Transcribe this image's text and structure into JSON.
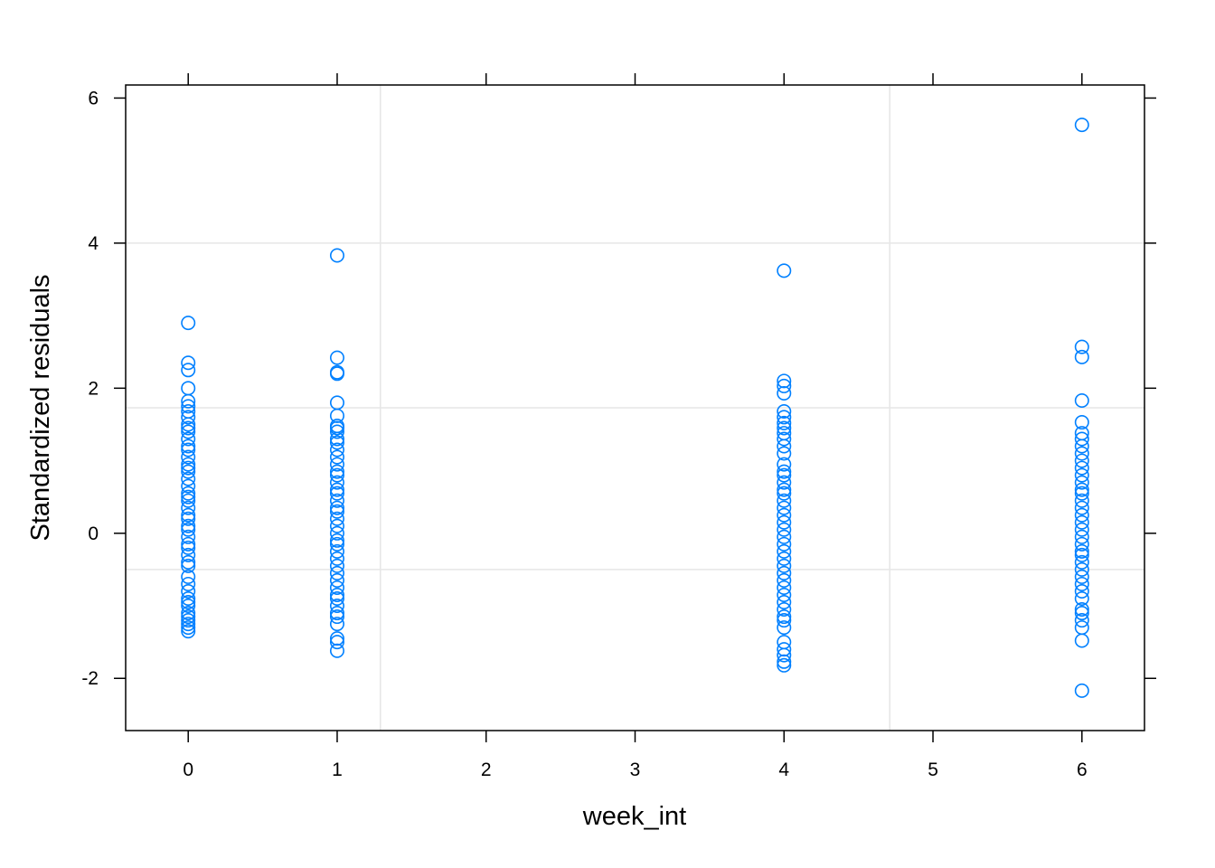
{
  "chart_data": {
    "type": "scatter",
    "title": "",
    "xlabel": "week_int",
    "ylabel": "Standardized residuals",
    "xlim": [
      -0.42,
      6.42
    ],
    "ylim": [
      -2.72,
      6.18
    ],
    "x_ticks": [
      0,
      1,
      2,
      3,
      4,
      5,
      6
    ],
    "y_ticks": [
      -2,
      0,
      2,
      4,
      6
    ],
    "x_tick_labels": [
      "0",
      "1",
      "2",
      "3",
      "4",
      "5",
      "6"
    ],
    "y_tick_labels": [
      "-2",
      "0",
      "2",
      "4",
      "6"
    ],
    "grid": true,
    "grid_x": [
      1.29,
      4.71
    ],
    "grid_y": [
      -0.5,
      1.73,
      4.0
    ],
    "colors": {
      "points": "#0080ff",
      "grid": "#e6e6e6",
      "axis": "#000000"
    },
    "series": [
      {
        "points": [
          {
            "x": 0,
            "y": 2.9
          },
          {
            "x": 0,
            "y": 2.35
          },
          {
            "x": 0,
            "y": 2.25
          },
          {
            "x": 0,
            "y": 2.0
          },
          {
            "x": 0,
            "y": 1.82
          },
          {
            "x": 0,
            "y": 1.75
          },
          {
            "x": 0,
            "y": 1.68
          },
          {
            "x": 0,
            "y": 1.6
          },
          {
            "x": 0,
            "y": 1.5
          },
          {
            "x": 0,
            "y": 1.45
          },
          {
            "x": 0,
            "y": 1.4
          },
          {
            "x": 0,
            "y": 1.3
          },
          {
            "x": 0,
            "y": 1.2
          },
          {
            "x": 0,
            "y": 1.15
          },
          {
            "x": 0,
            "y": 1.05
          },
          {
            "x": 0,
            "y": 0.95
          },
          {
            "x": 0,
            "y": 0.9
          },
          {
            "x": 0,
            "y": 0.85
          },
          {
            "x": 0,
            "y": 0.75
          },
          {
            "x": 0,
            "y": 0.65
          },
          {
            "x": 0,
            "y": 0.55
          },
          {
            "x": 0,
            "y": 0.5
          },
          {
            "x": 0,
            "y": 0.45
          },
          {
            "x": 0,
            "y": 0.35
          },
          {
            "x": 0,
            "y": 0.25
          },
          {
            "x": 0,
            "y": 0.2
          },
          {
            "x": 0,
            "y": 0.1
          },
          {
            "x": 0,
            "y": 0.05
          },
          {
            "x": 0,
            "y": -0.05
          },
          {
            "x": 0,
            "y": -0.15
          },
          {
            "x": 0,
            "y": -0.2
          },
          {
            "x": 0,
            "y": -0.3
          },
          {
            "x": 0,
            "y": -0.4
          },
          {
            "x": 0,
            "y": -0.45
          },
          {
            "x": 0,
            "y": -0.6
          },
          {
            "x": 0,
            "y": -0.7
          },
          {
            "x": 0,
            "y": -0.8
          },
          {
            "x": 0,
            "y": -0.9
          },
          {
            "x": 0,
            "y": -0.95
          },
          {
            "x": 0,
            "y": -1.0
          },
          {
            "x": 0,
            "y": -1.1
          },
          {
            "x": 0,
            "y": -1.15
          },
          {
            "x": 0,
            "y": -1.2
          },
          {
            "x": 0,
            "y": -1.25
          },
          {
            "x": 0,
            "y": -1.3
          },
          {
            "x": 0,
            "y": -1.35
          },
          {
            "x": 1,
            "y": 3.83
          },
          {
            "x": 1,
            "y": 2.42
          },
          {
            "x": 1,
            "y": 2.22
          },
          {
            "x": 1,
            "y": 2.2
          },
          {
            "x": 1,
            "y": 1.8
          },
          {
            "x": 1,
            "y": 1.62
          },
          {
            "x": 1,
            "y": 1.48
          },
          {
            "x": 1,
            "y": 1.45
          },
          {
            "x": 1,
            "y": 1.4
          },
          {
            "x": 1,
            "y": 1.3
          },
          {
            "x": 1,
            "y": 1.25
          },
          {
            "x": 1,
            "y": 1.15
          },
          {
            "x": 1,
            "y": 1.05
          },
          {
            "x": 1,
            "y": 0.95
          },
          {
            "x": 1,
            "y": 0.85
          },
          {
            "x": 1,
            "y": 0.8
          },
          {
            "x": 1,
            "y": 0.7
          },
          {
            "x": 1,
            "y": 0.6
          },
          {
            "x": 1,
            "y": 0.55
          },
          {
            "x": 1,
            "y": 0.45
          },
          {
            "x": 1,
            "y": 0.35
          },
          {
            "x": 1,
            "y": 0.3
          },
          {
            "x": 1,
            "y": 0.2
          },
          {
            "x": 1,
            "y": 0.1
          },
          {
            "x": 1,
            "y": 0.0
          },
          {
            "x": 1,
            "y": -0.1
          },
          {
            "x": 1,
            "y": -0.15
          },
          {
            "x": 1,
            "y": -0.25
          },
          {
            "x": 1,
            "y": -0.35
          },
          {
            "x": 1,
            "y": -0.45
          },
          {
            "x": 1,
            "y": -0.55
          },
          {
            "x": 1,
            "y": -0.65
          },
          {
            "x": 1,
            "y": -0.75
          },
          {
            "x": 1,
            "y": -0.85
          },
          {
            "x": 1,
            "y": -0.9
          },
          {
            "x": 1,
            "y": -1.0
          },
          {
            "x": 1,
            "y": -1.1
          },
          {
            "x": 1,
            "y": -1.15
          },
          {
            "x": 1,
            "y": -1.25
          },
          {
            "x": 1,
            "y": -1.45
          },
          {
            "x": 1,
            "y": -1.5
          },
          {
            "x": 1,
            "y": -1.62
          },
          {
            "x": 4,
            "y": 3.62
          },
          {
            "x": 4,
            "y": 2.1
          },
          {
            "x": 4,
            "y": 2.03
          },
          {
            "x": 4,
            "y": 1.93
          },
          {
            "x": 4,
            "y": 1.68
          },
          {
            "x": 4,
            "y": 1.6
          },
          {
            "x": 4,
            "y": 1.52
          },
          {
            "x": 4,
            "y": 1.45
          },
          {
            "x": 4,
            "y": 1.38
          },
          {
            "x": 4,
            "y": 1.3
          },
          {
            "x": 4,
            "y": 1.2
          },
          {
            "x": 4,
            "y": 1.1
          },
          {
            "x": 4,
            "y": 0.95
          },
          {
            "x": 4,
            "y": 0.85
          },
          {
            "x": 4,
            "y": 0.8
          },
          {
            "x": 4,
            "y": 0.7
          },
          {
            "x": 4,
            "y": 0.6
          },
          {
            "x": 4,
            "y": 0.55
          },
          {
            "x": 4,
            "y": 0.45
          },
          {
            "x": 4,
            "y": 0.35
          },
          {
            "x": 4,
            "y": 0.25
          },
          {
            "x": 4,
            "y": 0.15
          },
          {
            "x": 4,
            "y": 0.05
          },
          {
            "x": 4,
            "y": -0.05
          },
          {
            "x": 4,
            "y": -0.15
          },
          {
            "x": 4,
            "y": -0.25
          },
          {
            "x": 4,
            "y": -0.35
          },
          {
            "x": 4,
            "y": -0.45
          },
          {
            "x": 4,
            "y": -0.55
          },
          {
            "x": 4,
            "y": -0.65
          },
          {
            "x": 4,
            "y": -0.75
          },
          {
            "x": 4,
            "y": -0.85
          },
          {
            "x": 4,
            "y": -0.95
          },
          {
            "x": 4,
            "y": -1.05
          },
          {
            "x": 4,
            "y": -1.15
          },
          {
            "x": 4,
            "y": -1.2
          },
          {
            "x": 4,
            "y": -1.3
          },
          {
            "x": 4,
            "y": -1.5
          },
          {
            "x": 4,
            "y": -1.6
          },
          {
            "x": 4,
            "y": -1.68
          },
          {
            "x": 4,
            "y": -1.77
          },
          {
            "x": 4,
            "y": -1.82
          },
          {
            "x": 6,
            "y": 5.63
          },
          {
            "x": 6,
            "y": 2.57
          },
          {
            "x": 6,
            "y": 2.43
          },
          {
            "x": 6,
            "y": 1.83
          },
          {
            "x": 6,
            "y": 1.53
          },
          {
            "x": 6,
            "y": 1.38
          },
          {
            "x": 6,
            "y": 1.3
          },
          {
            "x": 6,
            "y": 1.2
          },
          {
            "x": 6,
            "y": 1.1
          },
          {
            "x": 6,
            "y": 1.0
          },
          {
            "x": 6,
            "y": 0.9
          },
          {
            "x": 6,
            "y": 0.8
          },
          {
            "x": 6,
            "y": 0.7
          },
          {
            "x": 6,
            "y": 0.6
          },
          {
            "x": 6,
            "y": 0.55
          },
          {
            "x": 6,
            "y": 0.45
          },
          {
            "x": 6,
            "y": 0.35
          },
          {
            "x": 6,
            "y": 0.25
          },
          {
            "x": 6,
            "y": 0.15
          },
          {
            "x": 6,
            "y": 0.05
          },
          {
            "x": 6,
            "y": -0.05
          },
          {
            "x": 6,
            "y": -0.15
          },
          {
            "x": 6,
            "y": -0.25
          },
          {
            "x": 6,
            "y": -0.3
          },
          {
            "x": 6,
            "y": -0.4
          },
          {
            "x": 6,
            "y": -0.5
          },
          {
            "x": 6,
            "y": -0.6
          },
          {
            "x": 6,
            "y": -0.7
          },
          {
            "x": 6,
            "y": -0.8
          },
          {
            "x": 6,
            "y": -0.9
          },
          {
            "x": 6,
            "y": -1.05
          },
          {
            "x": 6,
            "y": -1.1
          },
          {
            "x": 6,
            "y": -1.2
          },
          {
            "x": 6,
            "y": -1.3
          },
          {
            "x": 6,
            "y": -1.48
          },
          {
            "x": 6,
            "y": -2.17
          }
        ]
      }
    ]
  }
}
